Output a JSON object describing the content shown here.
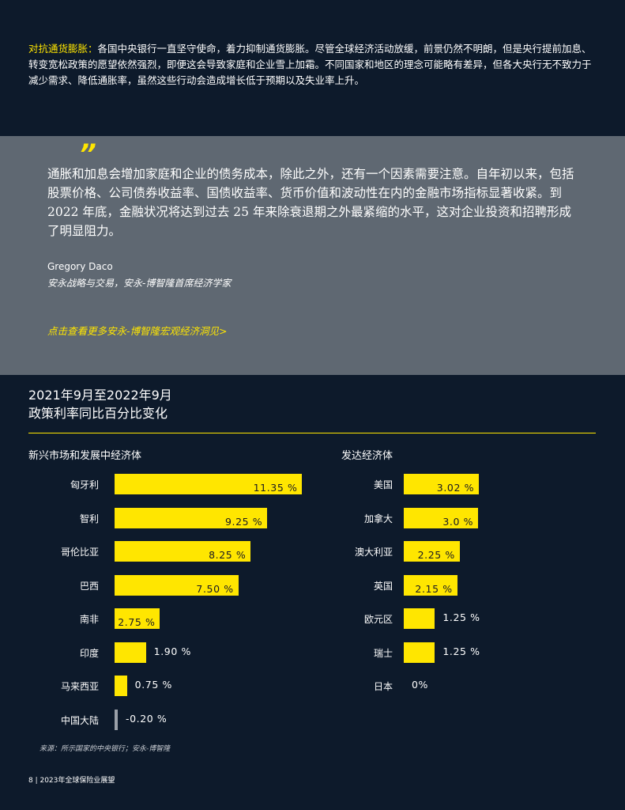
{
  "intro": {
    "lead": "对抗通货膨胀：",
    "body": "各国中央银行一直坚守使命，着力抑制通货膨胀。尽管全球经济活动放缓，前景仍然不明朗，但是央行提前加息、转变宽松政策的愿望依然强烈，即便这会导致家庭和企业雪上加霜。不同国家和地区的理念可能略有差异，但各大央行无不致力于减少需求、降低通胀率，虽然这些行动会造成增长低于预期以及失业率上升。"
  },
  "quote": {
    "mark": "”",
    "text": "通胀和加息会增加家庭和企业的债务成本，除此之外，还有一个因素需要注意。自年初以来，包括股票价格、公司债券收益率、国债收益率、货币价值和波动性在内的金融市场指标显著收紧。到 2022 年底，金融状况将达到过去 25 年来除衰退期之外最紧缩的水平，这对企业投资和招聘形成了明显阻力。",
    "author": "Gregory Daco",
    "author_title": "安永战略与交易，安永-博智隆首席经济学家",
    "link": "点击查看更多安永-博智隆宏观经济洞见>"
  },
  "chart_data": {
    "type": "bar",
    "title_line1": "2021年9月至2022年9月",
    "title_line2": "政策利率同比百分比变化",
    "colors": {
      "positive": "#ffe600",
      "negative": "#9aa0a8",
      "accent": "#ffe600"
    },
    "panels": [
      {
        "title": "新兴市场和发展中经济体",
        "categories": [
          "匈牙利",
          "智利",
          "哥伦比亚",
          "巴西",
          "南非",
          "印度",
          "马来西亚",
          "中国大陆"
        ],
        "values": [
          11.35,
          9.25,
          8.25,
          7.5,
          2.75,
          1.9,
          0.75,
          -0.2
        ],
        "labels": [
          "11.35 %",
          "9.25 %",
          "8.25 %",
          "7.50 %",
          "2.75 %",
          "1.90 %",
          "0.75 %",
          "-0.20 %"
        ]
      },
      {
        "title": "发达经济体",
        "categories": [
          "美国",
          "加拿大",
          "澳大利亚",
          "英国",
          "欧元区",
          "瑞士",
          "日本"
        ],
        "values": [
          3.02,
          3.0,
          2.25,
          2.15,
          1.25,
          1.25,
          0
        ],
        "labels": [
          "3.02 %",
          "3.0 %",
          "2.25 %",
          "2.15 %",
          "1.25 %",
          "1.25 %",
          "0%"
        ]
      }
    ]
  },
  "source": "来源：所示国家的中央银行；安永-博智隆",
  "footer": "8    | 2023年全球保险业展望"
}
